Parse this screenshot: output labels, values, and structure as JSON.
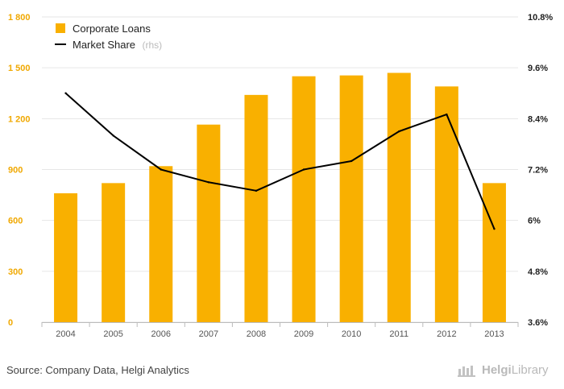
{
  "chart_data": {
    "type": "bar",
    "categories": [
      "2004",
      "2005",
      "2006",
      "2007",
      "2008",
      "2009",
      "2010",
      "2011",
      "2012",
      "2013"
    ],
    "series": [
      {
        "name": "Corporate Loans",
        "type": "bar",
        "axis": "left",
        "color": "#f9b000",
        "values": [
          760,
          820,
          920,
          1165,
          1340,
          1450,
          1455,
          1470,
          1390,
          820
        ]
      },
      {
        "name": "Market Share",
        "name_suffix": "(rhs)",
        "type": "line",
        "axis": "right",
        "color": "#000000",
        "values": [
          9.0,
          8.0,
          7.2,
          6.9,
          6.7,
          7.2,
          7.4,
          8.1,
          8.5,
          5.8
        ]
      }
    ],
    "y_left": {
      "min": 0,
      "max": 1800,
      "ticks": [
        "0",
        "300",
        "600",
        "900",
        "1 200",
        "1 500",
        "1 800"
      ]
    },
    "y_right": {
      "min": 3.6,
      "max": 10.8,
      "ticks": [
        "3.6%",
        "4.8%",
        "6%",
        "7.2%",
        "8.4%",
        "9.6%",
        "10.8%"
      ]
    },
    "grid": true,
    "legend_position": "top-left"
  },
  "footer": {
    "source": "Source: Company Data, Helgi Analytics",
    "brand_left": "Helgi",
    "brand_right": "Library"
  }
}
